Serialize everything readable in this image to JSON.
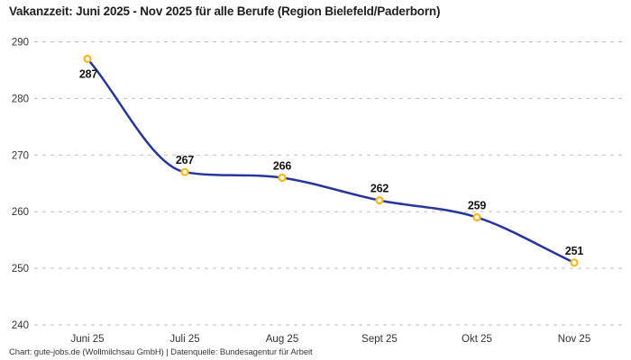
{
  "title": "Vakanzzeit: Juni 2025 - Nov 2025 für alle Berufe (Region Bielefeld/Paderborn)",
  "footer": "Chart: gute-jobs.de (Wollmilchsau GmbH) | Datenquelle: Bundesagentur für Arbeit",
  "chart_data": {
    "type": "line",
    "title": "Vakanzzeit: Juni 2025 - Nov 2025 für alle Berufe (Region Bielefeld/Paderborn)",
    "categories": [
      "Juni 25",
      "Juli 25",
      "Aug 25",
      "Sept 25",
      "Okt 25",
      "Nov 25"
    ],
    "values": [
      287,
      267,
      266,
      262,
      259,
      251
    ],
    "xlabel": "",
    "ylabel": "",
    "ylim": [
      240,
      290
    ],
    "yticks": [
      240,
      250,
      260,
      270,
      280,
      290
    ],
    "grid": "horizontal-dashed",
    "legend": "none",
    "curve": "monotone",
    "colors": {
      "line": "#26369c",
      "marker_ring": "#fcb713",
      "marker_fill": "#ffffff",
      "gridline": "#bdbdbd",
      "axis_text": "#333333",
      "value_label": "#141414"
    }
  }
}
